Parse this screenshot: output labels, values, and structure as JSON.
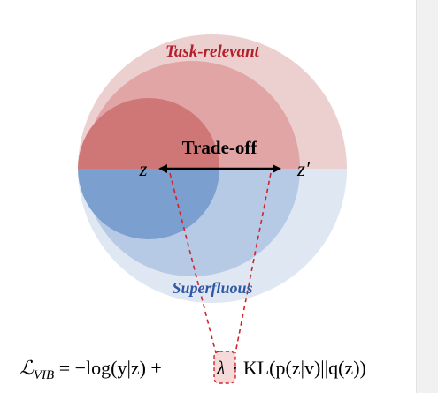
{
  "diagram": {
    "labels": {
      "task_relevant": "Task-relevant",
      "superfluous": "Superfluous",
      "trade_off": "Trade-off",
      "z": "z",
      "z_prime": "z′"
    },
    "formula": {
      "lhs_symbol": "ℒ",
      "lhs_subscript": "VIB",
      "eq": " = −log(y|z) + ",
      "lambda": "λ",
      "rest": "· KL(p(z|v)||q(z))"
    },
    "colors": {
      "outer_top": "#eccfcf",
      "outer_bottom": "#dfe7f2",
      "mid_top": "#e2a5a6",
      "mid_bottom": "#b6cae6",
      "inner_top": "#cf7676",
      "inner_bottom": "#7ba0d0",
      "task_relevant_text": "#b41f2c",
      "superfluous_text": "#2f57a5",
      "dashed_red": "#d0242a",
      "arrow": "#000000"
    }
  }
}
